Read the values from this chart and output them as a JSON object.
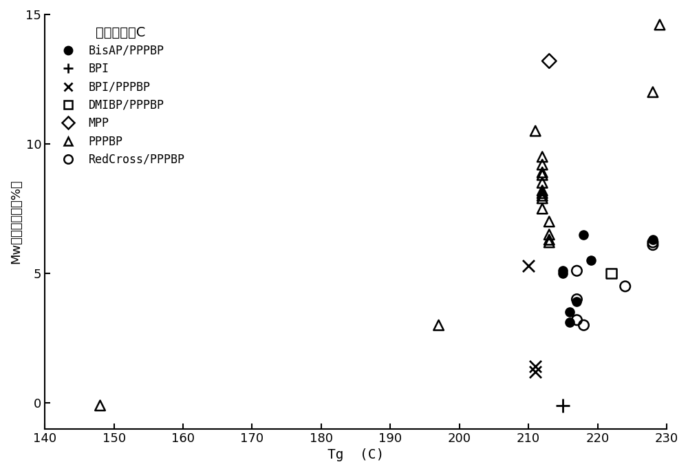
{
  "title": "",
  "xlabel": "Tg  (C)",
  "ylabel": "Mw损失高压釜（%）",
  "xlim": [
    140,
    230
  ],
  "ylim": [
    -1,
    15
  ],
  "xticks": [
    140,
    150,
    160,
    170,
    180,
    190,
    200,
    210,
    220,
    230
  ],
  "yticks": [
    0,
    5,
    10,
    15
  ],
  "legend_title": "使用的单体C",
  "series": {
    "BisAP/PPPBP": {
      "marker": "o",
      "filled": true,
      "points": [
        [
          215,
          5.0
        ],
        [
          215,
          5.1
        ],
        [
          218,
          6.5
        ],
        [
          219,
          5.5
        ],
        [
          216,
          3.5
        ],
        [
          216,
          3.1
        ],
        [
          217,
          3.9
        ],
        [
          228,
          6.3
        ]
      ]
    },
    "BPI": {
      "marker": "+",
      "filled": false,
      "points": [
        [
          215,
          -0.1
        ]
      ]
    },
    "BPI/PPPBP": {
      "marker": "x",
      "filled": false,
      "points": [
        [
          211,
          1.4
        ],
        [
          211,
          1.2
        ],
        [
          210,
          5.3
        ]
      ]
    },
    "DMIBP/PPPBP": {
      "marker": "s",
      "filled": false,
      "points": [
        [
          222,
          5.0
        ]
      ]
    },
    "MPP": {
      "marker": "D",
      "filled": false,
      "points": [
        [
          213,
          13.2
        ]
      ]
    },
    "PPPBP": {
      "marker": "^",
      "filled": false,
      "points": [
        [
          148,
          -0.1
        ],
        [
          197,
          3.0
        ],
        [
          211,
          10.5
        ],
        [
          212,
          9.5
        ],
        [
          212,
          9.2
        ],
        [
          212,
          8.9
        ],
        [
          212,
          8.8
        ],
        [
          212,
          8.5
        ],
        [
          212,
          8.2
        ],
        [
          212,
          8.1
        ],
        [
          212,
          8.0
        ],
        [
          212,
          7.9
        ],
        [
          212,
          7.5
        ],
        [
          213,
          7.0
        ],
        [
          213,
          6.5
        ],
        [
          213,
          6.3
        ],
        [
          213,
          6.2
        ],
        [
          228,
          12.0
        ],
        [
          229,
          14.6
        ]
      ]
    },
    "RedCross/PPPBP": {
      "marker": "o",
      "filled": false,
      "points": [
        [
          217,
          5.1
        ],
        [
          217,
          4.0
        ],
        [
          217,
          3.2
        ],
        [
          218,
          3.0
        ],
        [
          224,
          4.5
        ],
        [
          228,
          6.2
        ],
        [
          228,
          6.1
        ]
      ]
    }
  }
}
